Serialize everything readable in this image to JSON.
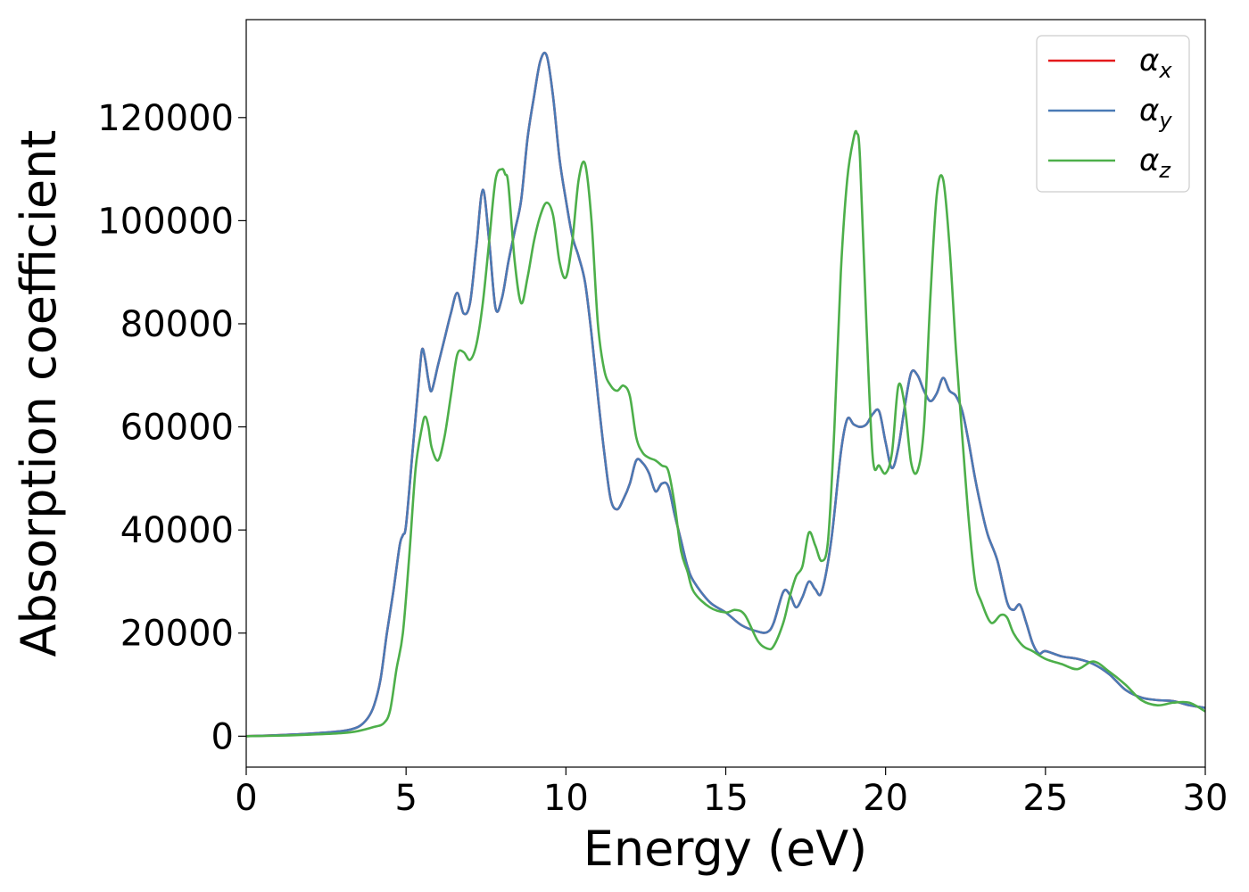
{
  "chart_data": {
    "type": "line",
    "title": "",
    "xlabel": "Energy (eV)",
    "ylabel": "Absorption coefficient",
    "xlim": [
      0,
      30
    ],
    "ylim": [
      -6000,
      139000
    ],
    "xticks": [
      0,
      5,
      10,
      15,
      20,
      25,
      30
    ],
    "yticks": [
      0,
      20000,
      40000,
      60000,
      80000,
      100000,
      120000
    ],
    "grid": false,
    "legend_position": "top-right",
    "series": [
      {
        "name": "α",
        "subscript": "x",
        "color": "#e41a1c",
        "x": [
          0,
          1,
          2,
          3,
          3.5,
          3.8,
          4.0,
          4.2,
          4.4,
          4.6,
          4.8,
          4.9,
          5.0,
          5.2,
          5.4,
          5.5,
          5.6,
          5.7,
          5.8,
          6.0,
          6.2,
          6.4,
          6.6,
          6.8,
          7.0,
          7.2,
          7.4,
          7.6,
          7.8,
          8.0,
          8.2,
          8.4,
          8.6,
          8.8,
          9.0,
          9.2,
          9.4,
          9.6,
          9.8,
          10.0,
          10.2,
          10.4,
          10.6,
          10.8,
          11.0,
          11.2,
          11.4,
          11.6,
          11.8,
          12.0,
          12.2,
          12.4,
          12.6,
          12.8,
          13.0,
          13.2,
          13.4,
          13.6,
          13.8,
          14.0,
          14.5,
          15.0,
          15.5,
          16.0,
          16.3,
          16.5,
          16.8,
          17.0,
          17.2,
          17.4,
          17.6,
          17.8,
          18.0,
          18.3,
          18.6,
          18.8,
          19.0,
          19.2,
          19.4,
          19.6,
          19.8,
          20.0,
          20.2,
          20.4,
          20.6,
          20.8,
          21.0,
          21.2,
          21.4,
          21.6,
          21.8,
          22.0,
          22.2,
          22.4,
          22.6,
          22.8,
          23.0,
          23.2,
          23.5,
          23.8,
          24.0,
          24.2,
          24.4,
          24.6,
          24.8,
          25.0,
          25.5,
          26.0,
          26.5,
          27.0,
          27.5,
          28.0,
          28.5,
          29.0,
          29.5,
          30.0
        ],
        "y": [
          0,
          200,
          500,
          1000,
          1800,
          3500,
          6000,
          11000,
          20000,
          28000,
          37000,
          39000,
          41000,
          55000,
          69000,
          75000,
          73000,
          69000,
          67000,
          72000,
          77000,
          82000,
          86000,
          82000,
          84000,
          95000,
          106000,
          96000,
          83000,
          85000,
          92000,
          98000,
          104000,
          116000,
          124000,
          131000,
          132000,
          124000,
          112000,
          104000,
          97000,
          93000,
          88000,
          78000,
          66000,
          55000,
          46000,
          44000,
          46000,
          49000,
          53500,
          53000,
          51000,
          47500,
          49000,
          48500,
          43000,
          38000,
          33000,
          30000,
          26000,
          24000,
          21500,
          20300,
          20200,
          22000,
          28000,
          27500,
          25000,
          27000,
          30000,
          28500,
          28000,
          38000,
          55000,
          61500,
          60500,
          60000,
          60500,
          62500,
          63000,
          57000,
          52000,
          56000,
          64000,
          70500,
          70000,
          67000,
          65000,
          66500,
          69500,
          67000,
          66000,
          63000,
          57000,
          50000,
          44000,
          39000,
          34000,
          26000,
          24500,
          25500,
          22000,
          18000,
          16000,
          16500,
          15500,
          15000,
          14000,
          12000,
          9000,
          7500,
          7000,
          6800,
          6000,
          5500
        ]
      },
      {
        "name": "α",
        "subscript": "y",
        "color": "#4a7ab5",
        "x": [
          0,
          1,
          2,
          3,
          3.5,
          3.8,
          4.0,
          4.2,
          4.4,
          4.6,
          4.8,
          4.9,
          5.0,
          5.2,
          5.4,
          5.5,
          5.6,
          5.7,
          5.8,
          6.0,
          6.2,
          6.4,
          6.6,
          6.8,
          7.0,
          7.2,
          7.4,
          7.6,
          7.8,
          8.0,
          8.2,
          8.4,
          8.6,
          8.8,
          9.0,
          9.2,
          9.4,
          9.6,
          9.8,
          10.0,
          10.2,
          10.4,
          10.6,
          10.8,
          11.0,
          11.2,
          11.4,
          11.6,
          11.8,
          12.0,
          12.2,
          12.4,
          12.6,
          12.8,
          13.0,
          13.2,
          13.4,
          13.6,
          13.8,
          14.0,
          14.5,
          15.0,
          15.5,
          16.0,
          16.3,
          16.5,
          16.8,
          17.0,
          17.2,
          17.4,
          17.6,
          17.8,
          18.0,
          18.3,
          18.6,
          18.8,
          19.0,
          19.2,
          19.4,
          19.6,
          19.8,
          20.0,
          20.2,
          20.4,
          20.6,
          20.8,
          21.0,
          21.2,
          21.4,
          21.6,
          21.8,
          22.0,
          22.2,
          22.4,
          22.6,
          22.8,
          23.0,
          23.2,
          23.5,
          23.8,
          24.0,
          24.2,
          24.4,
          24.6,
          24.8,
          25.0,
          25.5,
          26.0,
          26.5,
          27.0,
          27.5,
          28.0,
          28.5,
          29.0,
          29.5,
          30.0
        ],
        "y": [
          0,
          200,
          500,
          1000,
          1800,
          3500,
          6000,
          11000,
          20000,
          28000,
          37000,
          39000,
          41000,
          55000,
          69000,
          75000,
          73000,
          69000,
          67000,
          72000,
          77000,
          82000,
          86000,
          82000,
          84000,
          95000,
          106000,
          96000,
          83000,
          85000,
          92000,
          98000,
          104000,
          116000,
          124000,
          131000,
          132000,
          124000,
          112000,
          104000,
          97000,
          93000,
          88000,
          78000,
          66000,
          55000,
          46000,
          44000,
          46000,
          49000,
          53500,
          53000,
          51000,
          47500,
          49000,
          48500,
          43000,
          38000,
          33000,
          30000,
          26000,
          24000,
          21500,
          20300,
          20200,
          22000,
          28000,
          27500,
          25000,
          27000,
          30000,
          28500,
          28000,
          38000,
          55000,
          61500,
          60500,
          60000,
          60500,
          62500,
          63000,
          57000,
          52000,
          56000,
          64000,
          70500,
          70000,
          67000,
          65000,
          66500,
          69500,
          67000,
          66000,
          63000,
          57000,
          50000,
          44000,
          39000,
          34000,
          26000,
          24500,
          25500,
          22000,
          18000,
          16000,
          16500,
          15500,
          15000,
          14000,
          12000,
          9000,
          7500,
          7000,
          6800,
          6000,
          5500
        ]
      },
      {
        "name": "α",
        "subscript": "z",
        "color": "#4daf4a",
        "x": [
          0,
          1,
          2,
          3,
          3.5,
          4.0,
          4.3,
          4.5,
          4.7,
          4.9,
          5.1,
          5.3,
          5.5,
          5.6,
          5.7,
          5.8,
          6.0,
          6.2,
          6.4,
          6.6,
          6.8,
          7.0,
          7.2,
          7.4,
          7.6,
          7.8,
          8.0,
          8.1,
          8.2,
          8.4,
          8.6,
          8.8,
          9.0,
          9.2,
          9.4,
          9.6,
          9.8,
          10.0,
          10.2,
          10.4,
          10.6,
          10.8,
          11.0,
          11.2,
          11.4,
          11.6,
          11.8,
          12.0,
          12.2,
          12.4,
          12.6,
          12.8,
          13.0,
          13.2,
          13.4,
          13.6,
          13.8,
          14.0,
          14.5,
          15.0,
          15.3,
          15.6,
          16.0,
          16.3,
          16.5,
          16.8,
          17.0,
          17.2,
          17.4,
          17.6,
          17.8,
          18.0,
          18.2,
          18.4,
          18.6,
          18.8,
          19.0,
          19.1,
          19.2,
          19.4,
          19.6,
          19.8,
          20.0,
          20.2,
          20.4,
          20.6,
          20.8,
          21.0,
          21.2,
          21.4,
          21.6,
          21.8,
          22.0,
          22.2,
          22.4,
          22.6,
          22.8,
          23.0,
          23.3,
          23.6,
          23.8,
          24.0,
          24.3,
          24.6,
          25.0,
          25.5,
          26.0,
          26.5,
          27.0,
          27.5,
          28.0,
          28.5,
          29.0,
          29.5,
          30.0
        ],
        "y": [
          0,
          100,
          300,
          600,
          1000,
          1800,
          2500,
          5000,
          13000,
          20000,
          35000,
          52000,
          60000,
          62000,
          60000,
          56000,
          53500,
          58000,
          66000,
          74000,
          74500,
          73000,
          76000,
          84000,
          96000,
          108000,
          110000,
          109000,
          107000,
          92000,
          84000,
          89000,
          96000,
          101000,
          103500,
          101000,
          92000,
          89000,
          96000,
          108000,
          111000,
          100000,
          80000,
          71000,
          68000,
          67000,
          68000,
          66000,
          58000,
          55000,
          54000,
          53500,
          52500,
          51500,
          45000,
          36000,
          32000,
          28000,
          25000,
          24000,
          24500,
          23500,
          18500,
          17000,
          17500,
          22000,
          27000,
          31000,
          33000,
          39500,
          37000,
          34000,
          38000,
          60000,
          90000,
          108000,
          116000,
          117000,
          112000,
          80000,
          54000,
          52500,
          51000,
          55000,
          68000,
          64000,
          53000,
          51500,
          60000,
          85000,
          105000,
          108000,
          95000,
          75000,
          58000,
          42000,
          30000,
          26000,
          22000,
          23500,
          23000,
          20000,
          17500,
          16500,
          15000,
          14000,
          13000,
          14500,
          12500,
          10000,
          7000,
          6000,
          6500,
          6500,
          4800
        ]
      }
    ]
  }
}
